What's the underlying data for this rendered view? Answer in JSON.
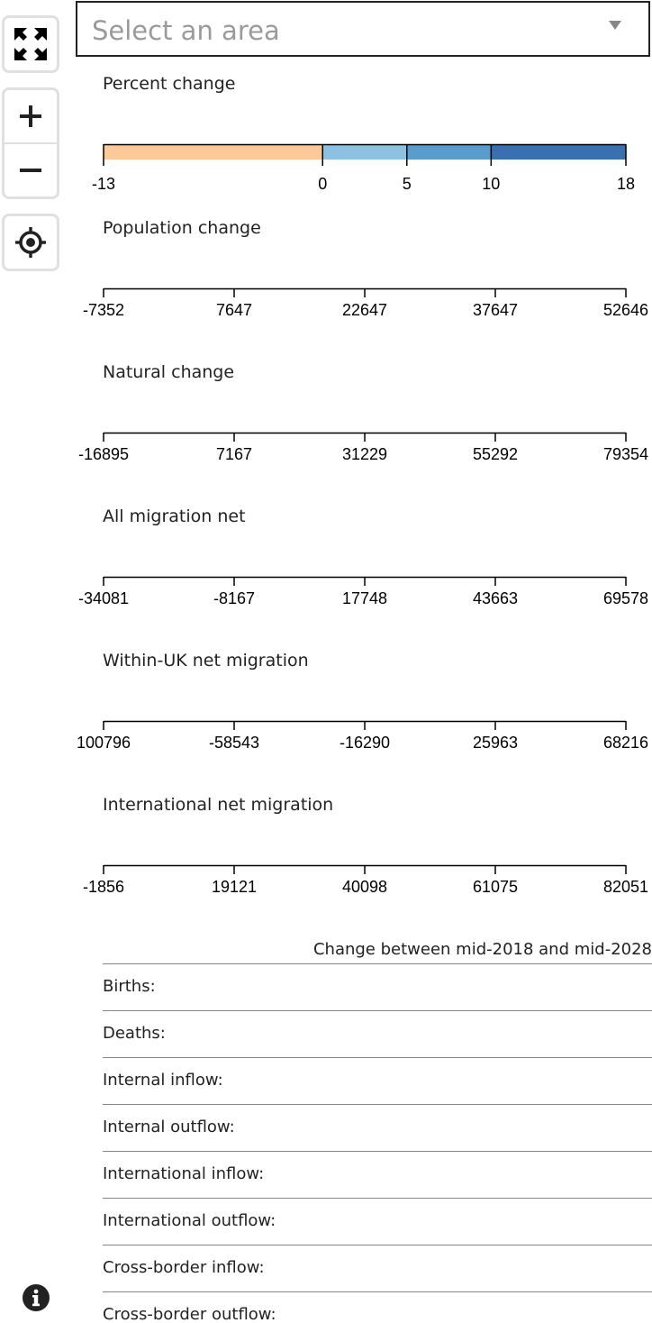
{
  "map_controls": {
    "fullscreen_icon": "expand-arrows-icon",
    "zoom_in_icon": "plus-icon",
    "zoom_out_icon": "minus-icon",
    "locate_icon": "crosshair-target-icon",
    "info_icon": "info-circle-icon"
  },
  "area_select": {
    "placeholder": "Select an area"
  },
  "colors": {
    "negative": "#fdc999",
    "band1": "#8cc1e1",
    "band2": "#5a9ccc",
    "band3": "#3a70b0"
  },
  "legends": [
    {
      "title": "Percent change",
      "type": "color-scale",
      "domain": [
        -13,
        18
      ],
      "breaks": [
        -13,
        0,
        5,
        10,
        18
      ],
      "ticks": [
        "-13",
        "0",
        "5",
        "10",
        "18"
      ]
    },
    {
      "title": "Population change",
      "ticks": [
        "-7352",
        "7647",
        "22647",
        "37647",
        "52646"
      ]
    },
    {
      "title": "Natural change",
      "ticks": [
        "-16895",
        "7167",
        "31229",
        "55292",
        "79354"
      ]
    },
    {
      "title": "All migration net",
      "ticks": [
        "-34081",
        "-8167",
        "17748",
        "43663",
        "69578"
      ]
    },
    {
      "title": "Within-UK net migration",
      "ticks": [
        "100796",
        "-58543",
        "-16290",
        "25963",
        "68216"
      ]
    },
    {
      "title": "International net migration",
      "ticks": [
        "-1856",
        "19121",
        "40098",
        "61075",
        "82051"
      ]
    }
  ],
  "stats_table": {
    "header": "Change between mid-2018 and mid-2028",
    "rows": [
      {
        "label": "Births:"
      },
      {
        "label": "Deaths:"
      },
      {
        "label": "Internal inflow:"
      },
      {
        "label": "Internal outflow:"
      },
      {
        "label": "International inflow:"
      },
      {
        "label": "International outflow:"
      },
      {
        "label": "Cross-border inflow:"
      },
      {
        "label": "Cross-border outflow:"
      }
    ]
  }
}
